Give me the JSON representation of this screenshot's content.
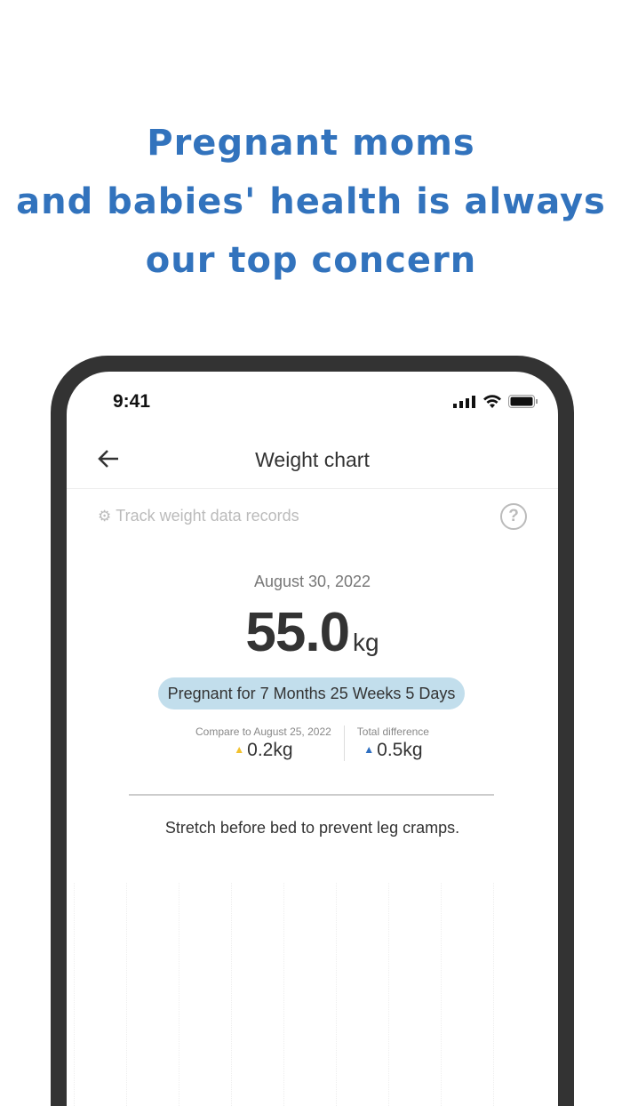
{
  "headline": {
    "line1": "Pregnant moms",
    "line2": "and babies' health is always",
    "line3": "our top concern"
  },
  "status_bar": {
    "time": "9:41"
  },
  "nav": {
    "title": "Weight chart",
    "back_icon": "arrow-left-icon"
  },
  "track": {
    "label": "Track weight data records",
    "icon": "gear-icon",
    "help_icon": "?"
  },
  "entry": {
    "date": "August 30, 2022",
    "weight": "55.0",
    "unit": "kg",
    "pregnancy": "Pregnant for 7 Months 25 Weeks 5 Days"
  },
  "compare": {
    "label": "Compare to August 25, 2022",
    "value": "0.2kg",
    "arrow": "▲",
    "color": "#f2c12e"
  },
  "total": {
    "label": "Total difference",
    "value": "0.5kg",
    "arrow": "▲",
    "color": "#2f6fc0"
  },
  "tip": "Stretch before bed to prevent leg cramps.",
  "colors": {
    "accent": "#3273bd",
    "pill": "#c2deec",
    "frame": "#333333"
  }
}
